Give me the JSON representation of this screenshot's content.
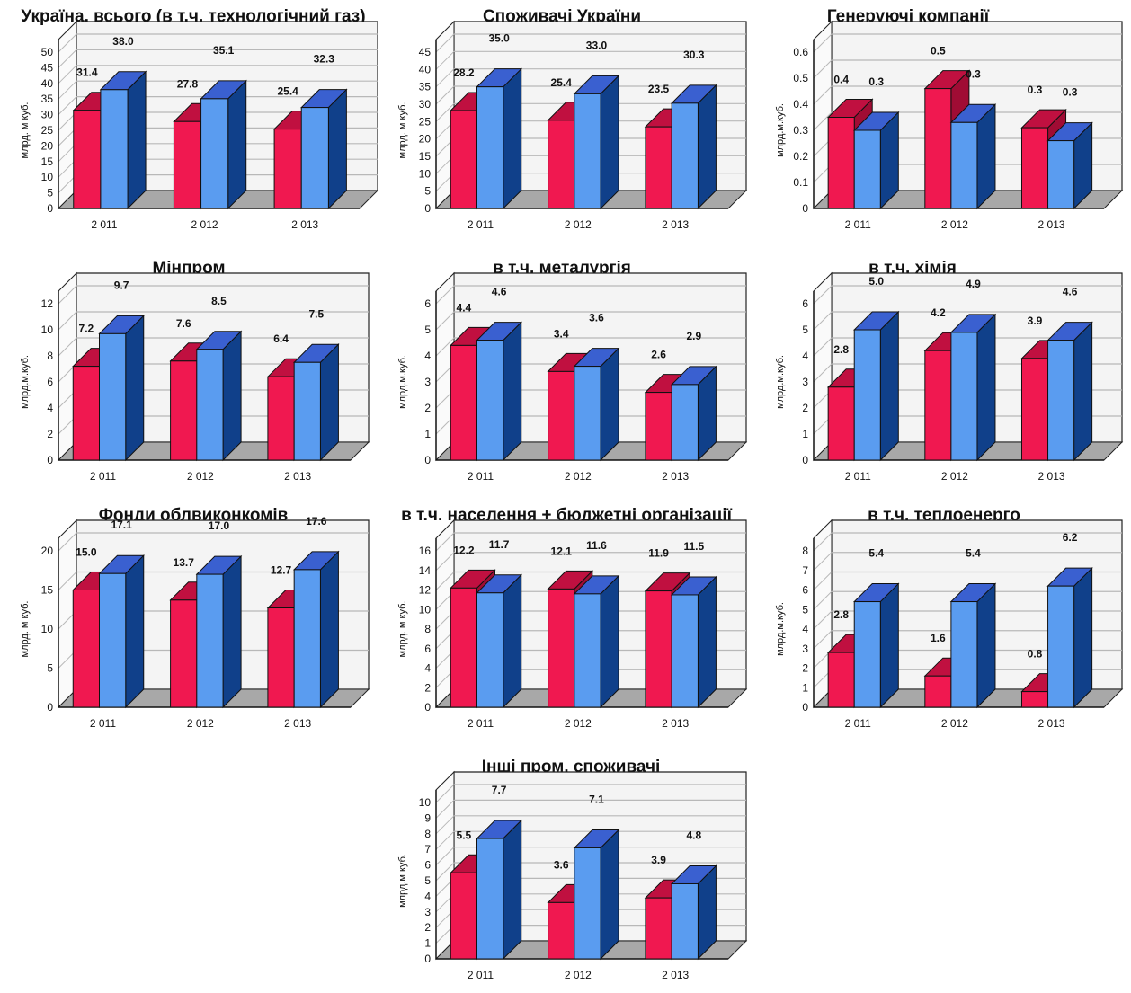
{
  "colors": {
    "series_2011_front": "#f01850",
    "series_2011_top": "#c01040",
    "series_2011_side": "#a00c34",
    "series_b_front": "#5a9cf0",
    "series_b_top": "#3a60d0",
    "series_b_side": "#10408a",
    "floor": "#a8a8a8",
    "wall": "#f4f4f4",
    "grid": "#b8b8b8"
  },
  "chart_data": [
    {
      "type": "bar",
      "title": "Україна, всього (в т.ч. технологічний газ)",
      "ylabel": "млрд. м куб.",
      "categories": [
        "2 011",
        "2 012",
        "2 013"
      ],
      "yticks": [
        0,
        5,
        10,
        15,
        20,
        25,
        30,
        35,
        40,
        45,
        50
      ],
      "ylim": [
        0,
        50
      ],
      "grid": true,
      "series": [
        {
          "name": "red",
          "values": [
            31.4,
            27.8,
            25.4
          ],
          "labels": [
            "31.4",
            "27.8",
            "25.4"
          ]
        },
        {
          "name": "blue",
          "values": [
            38.0,
            35.1,
            32.3
          ],
          "labels": [
            "38.0",
            "35.1",
            "32.3"
          ]
        }
      ]
    },
    {
      "type": "bar",
      "title": "Споживачі України",
      "ylabel": "млрд. м куб.",
      "categories": [
        "2 011",
        "2 012",
        "2 013"
      ],
      "yticks": [
        0,
        5,
        10,
        15,
        20,
        25,
        30,
        35,
        40,
        45
      ],
      "ylim": [
        0,
        45
      ],
      "grid": true,
      "series": [
        {
          "name": "red",
          "values": [
            28.2,
            25.4,
            23.5
          ],
          "labels": [
            "28.2",
            "25.4",
            "23.5"
          ]
        },
        {
          "name": "blue",
          "values": [
            35.0,
            33.0,
            30.3
          ],
          "labels": [
            "35.0",
            "33.0",
            "30.3"
          ]
        }
      ]
    },
    {
      "type": "bar",
      "title": "Генеруючі компанії",
      "ylabel": "млрд.м.куб.",
      "categories": [
        "2 011",
        "2 012",
        "2 013"
      ],
      "yticks": [
        0,
        0.1,
        0.2,
        0.3,
        0.4,
        0.5,
        0.6
      ],
      "ylim": [
        0,
        0.6
      ],
      "grid": true,
      "series": [
        {
          "name": "red",
          "values": [
            0.35,
            0.46,
            0.31
          ],
          "labels": [
            "0.4",
            "0.5",
            "0.3"
          ]
        },
        {
          "name": "blue",
          "values": [
            0.3,
            0.33,
            0.26
          ],
          "labels": [
            "0.3",
            "0.3",
            "0.3"
          ]
        }
      ]
    },
    {
      "type": "bar",
      "title": "Мінпром",
      "ylabel": "млрд.м.куб.",
      "categories": [
        "2 011",
        "2 012",
        "2 013"
      ],
      "yticks": [
        0,
        2,
        4,
        6,
        8,
        10,
        12
      ],
      "ylim": [
        0,
        12
      ],
      "grid": true,
      "series": [
        {
          "name": "red",
          "values": [
            7.2,
            7.6,
            6.4
          ],
          "labels": [
            "7.2",
            "7.6",
            "6.4"
          ]
        },
        {
          "name": "blue",
          "values": [
            9.7,
            8.5,
            7.5
          ],
          "labels": [
            "9.7",
            "8.5",
            "7.5"
          ]
        }
      ]
    },
    {
      "type": "bar",
      "title": "в т.ч. металургія",
      "ylabel": "млрд.м.куб.",
      "categories": [
        "2 011",
        "2 012",
        "2 013"
      ],
      "yticks": [
        0,
        1,
        2,
        3,
        4,
        5,
        6
      ],
      "ylim": [
        0,
        6
      ],
      "grid": true,
      "series": [
        {
          "name": "red",
          "values": [
            4.4,
            3.4,
            2.6
          ],
          "labels": [
            "4.4",
            "3.4",
            "2.6"
          ]
        },
        {
          "name": "blue",
          "values": [
            4.6,
            3.6,
            2.9
          ],
          "labels": [
            "4.6",
            "3.6",
            "2.9"
          ]
        }
      ]
    },
    {
      "type": "bar",
      "title": "в т.ч. хімія",
      "ylabel": "млрд.м.куб.",
      "categories": [
        "2 011",
        "2 012",
        "2 013"
      ],
      "yticks": [
        0,
        1,
        2,
        3,
        4,
        5,
        6
      ],
      "ylim": [
        0,
        6
      ],
      "grid": true,
      "series": [
        {
          "name": "red",
          "values": [
            2.8,
            4.2,
            3.9
          ],
          "labels": [
            "2.8",
            "4.2",
            "3.9"
          ]
        },
        {
          "name": "blue",
          "values": [
            5.0,
            4.9,
            4.6
          ],
          "labels": [
            "5.0",
            "4.9",
            "4.6"
          ]
        }
      ]
    },
    {
      "type": "bar",
      "title": "Фонди облвиконкомів",
      "ylabel": "млрд. м куб.",
      "categories": [
        "2 011",
        "2 012",
        "2 013"
      ],
      "yticks": [
        0,
        5,
        10,
        15,
        20
      ],
      "ylim": [
        0,
        20
      ],
      "grid": true,
      "series": [
        {
          "name": "red",
          "values": [
            15.0,
            13.7,
            12.7
          ],
          "labels": [
            "15.0",
            "13.7",
            "12.7"
          ]
        },
        {
          "name": "blue",
          "values": [
            17.1,
            17.0,
            17.6
          ],
          "labels": [
            "17.1",
            "17.0",
            "17.6"
          ]
        }
      ]
    },
    {
      "type": "bar",
      "title": "в т.ч. населення + бюджетні організації",
      "ylabel": "млрд. м куб.",
      "categories": [
        "2 011",
        "2 012",
        "2 013"
      ],
      "yticks": [
        0,
        2,
        4,
        6,
        8,
        10,
        12,
        14,
        16
      ],
      "ylim": [
        0,
        16
      ],
      "grid": true,
      "series": [
        {
          "name": "red",
          "values": [
            12.2,
            12.1,
            11.9
          ],
          "labels": [
            "12.2",
            "12.1",
            "11.9"
          ]
        },
        {
          "name": "blue",
          "values": [
            11.7,
            11.6,
            11.5
          ],
          "labels": [
            "11.7",
            "11.6",
            "11.5"
          ]
        }
      ]
    },
    {
      "type": "bar",
      "title": "в т.ч. теплоенерго",
      "ylabel": "млрд.м.куб.",
      "categories": [
        "2 011",
        "2 012",
        "2 013"
      ],
      "yticks": [
        0,
        1,
        2,
        3,
        4,
        5,
        6,
        7,
        8
      ],
      "ylim": [
        0,
        8
      ],
      "grid": true,
      "series": [
        {
          "name": "red",
          "values": [
            2.8,
            1.6,
            0.8
          ],
          "labels": [
            "2.8",
            "1.6",
            "0.8"
          ]
        },
        {
          "name": "blue",
          "values": [
            5.4,
            5.4,
            6.2
          ],
          "labels": [
            "5.4",
            "5.4",
            "6.2"
          ]
        }
      ]
    },
    {
      "type": "bar",
      "title": "Інші пром. споживачі",
      "ylabel": "млрд.м.куб.",
      "categories": [
        "2 011",
        "2 012",
        "2 013"
      ],
      "yticks": [
        0,
        1,
        2,
        3,
        4,
        5,
        6,
        7,
        8,
        9,
        10
      ],
      "ylim": [
        0,
        10
      ],
      "grid": true,
      "series": [
        {
          "name": "red",
          "values": [
            5.5,
            3.6,
            3.9
          ],
          "labels": [
            "5.5",
            "3.6",
            "3.9"
          ]
        },
        {
          "name": "blue",
          "values": [
            7.7,
            7.1,
            4.8
          ],
          "labels": [
            "7.7",
            "7.1",
            "4.8"
          ]
        }
      ]
    }
  ]
}
